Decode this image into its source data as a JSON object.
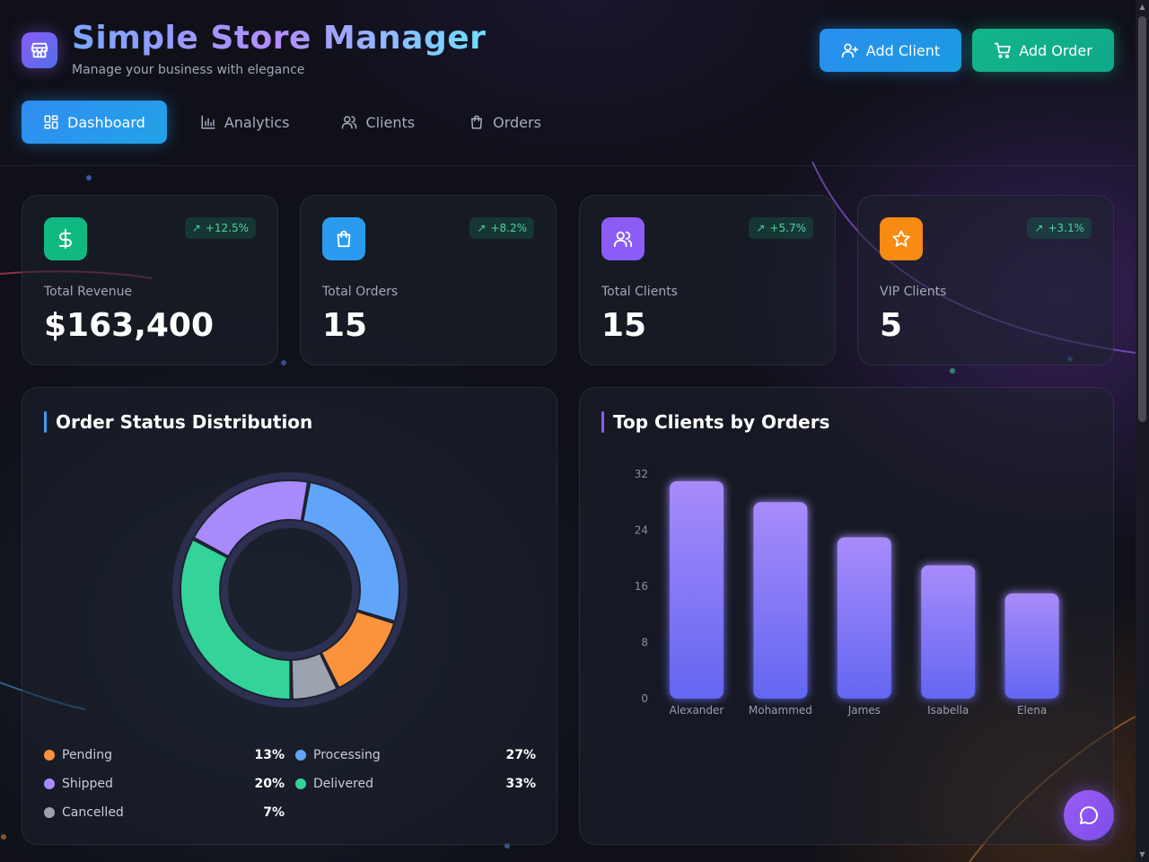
{
  "header": {
    "title": "Simple Store Manager",
    "subtitle": "Manage your business with elegance",
    "add_client_label": "Add Client",
    "add_order_label": "Add Order"
  },
  "tabs": [
    {
      "label": "Dashboard",
      "icon": "dashboard-icon",
      "active": true
    },
    {
      "label": "Analytics",
      "icon": "bar-chart-icon",
      "active": false
    },
    {
      "label": "Clients",
      "icon": "users-icon",
      "active": false
    },
    {
      "label": "Orders",
      "icon": "shopping-bag-icon",
      "active": false
    }
  ],
  "stats": [
    {
      "label": "Total Revenue",
      "value": "$163,400",
      "change": "+12.5%",
      "icon": "dollar-icon",
      "color": "#10b981"
    },
    {
      "label": "Total Orders",
      "value": "15",
      "change": "+8.2%",
      "icon": "shopping-bag-icon",
      "color": "#2b9bf0"
    },
    {
      "label": "Total Clients",
      "value": "15",
      "change": "+5.7%",
      "icon": "users-icon",
      "color": "#8b5cf6"
    },
    {
      "label": "VIP Clients",
      "value": "5",
      "change": "+3.1%",
      "icon": "star-icon",
      "color": "#f98a12"
    }
  ],
  "order_status": {
    "title": "Order Status Distribution",
    "legend": [
      {
        "label": "Pending",
        "pct": "13%",
        "color": "#fb923c"
      },
      {
        "label": "Processing",
        "pct": "27%",
        "color": "#60a5fa"
      },
      {
        "label": "Shipped",
        "pct": "20%",
        "color": "#a78bfa"
      },
      {
        "label": "Delivered",
        "pct": "33%",
        "color": "#34d399"
      },
      {
        "label": "Cancelled",
        "pct": "7%",
        "color": "#9ca3af"
      }
    ]
  },
  "top_clients": {
    "title": "Top Clients by Orders"
  },
  "chart_data": [
    {
      "type": "pie",
      "title": "Order Status Distribution",
      "categories": [
        "Shipped",
        "Processing",
        "Pending",
        "Cancelled",
        "Delivered"
      ],
      "values": [
        20,
        27,
        13,
        7,
        33
      ],
      "colors": [
        "#a78bfa",
        "#60a5fa",
        "#fb923c",
        "#9ca3af",
        "#34d399"
      ],
      "donut": true,
      "legend": "bottom"
    },
    {
      "type": "bar",
      "title": "Top Clients by Orders",
      "categories": [
        "Alexander",
        "Mohammed",
        "James",
        "Isabella",
        "Elena"
      ],
      "values": [
        31,
        28,
        23,
        19,
        15
      ],
      "yticks": [
        0,
        8,
        16,
        24,
        32
      ],
      "ylim": [
        0,
        32
      ],
      "color_top": "#a78bfa",
      "color_bottom": "#6366f1",
      "grid": false
    }
  ]
}
